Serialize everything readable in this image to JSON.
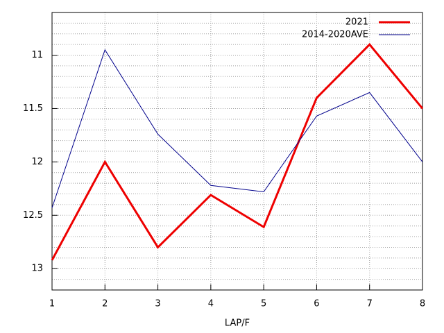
{
  "chart_data": {
    "type": "line",
    "xlabel": "LAP/F",
    "x": [
      1,
      2,
      3,
      4,
      5,
      6,
      7,
      8
    ],
    "series": [
      {
        "name": "2021",
        "color": "#ee0000",
        "width": 3,
        "values": [
          12.92,
          12.0,
          12.8,
          12.31,
          12.61,
          11.4,
          10.9,
          11.5
        ]
      },
      {
        "name": "2014-2020AVE",
        "color": "#00008b",
        "width": 1,
        "values": [
          12.43,
          10.95,
          11.74,
          12.22,
          12.28,
          11.57,
          11.35,
          12.0
        ]
      }
    ],
    "xlim": [
      1,
      8
    ],
    "xticks": [
      1,
      2,
      3,
      4,
      5,
      6,
      7,
      8
    ],
    "ylim": [
      13.2,
      10.6
    ],
    "yticks": [
      11,
      11.5,
      12,
      12.5,
      13
    ],
    "yminorticks": [
      10.7,
      10.8,
      10.9,
      11.1,
      11.2,
      11.3,
      11.4,
      11.6,
      11.7,
      11.8,
      11.9,
      12.1,
      12.2,
      12.3,
      12.4,
      12.6,
      12.7,
      12.8,
      12.9,
      13.1
    ],
    "grid": true,
    "legend": "top-right"
  }
}
